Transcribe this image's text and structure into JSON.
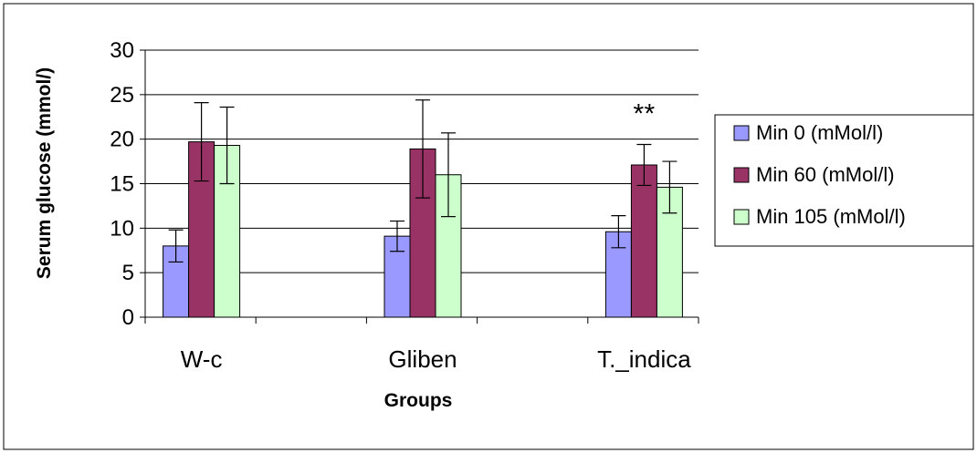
{
  "chart_data": {
    "type": "bar",
    "title": "",
    "xlabel": "Groups",
    "ylabel": "Serum glucose (mmol/)",
    "ylim": [
      0,
      30
    ],
    "yticks": [
      0,
      5,
      10,
      15,
      20,
      25,
      30
    ],
    "grid": "horizontal",
    "legend_position": "right",
    "categories": [
      "W-c",
      "Gliben",
      "T._indica"
    ],
    "series": [
      {
        "name": "Min 0 (mMol/l)",
        "color": "#9999ff",
        "values": [
          8.0,
          9.1,
          9.6
        ],
        "errors": [
          1.8,
          1.7,
          1.8
        ]
      },
      {
        "name": "Min 60 (mMol/l)",
        "color": "#993366",
        "values": [
          19.7,
          18.9,
          17.1
        ],
        "errors": [
          4.4,
          5.5,
          2.3
        ]
      },
      {
        "name": "Min 105 (mMol/l)",
        "color": "#ccffcc",
        "values": [
          19.3,
          16.0,
          14.6
        ],
        "errors": [
          4.3,
          4.7,
          2.9
        ]
      }
    ],
    "annotations": [
      {
        "text": "*",
        "category": "T._indica",
        "series": "Min 60 (mMol/l)"
      },
      {
        "text": "*",
        "category": "T._indica",
        "series": "Min 60 (mMol/l)"
      }
    ]
  }
}
